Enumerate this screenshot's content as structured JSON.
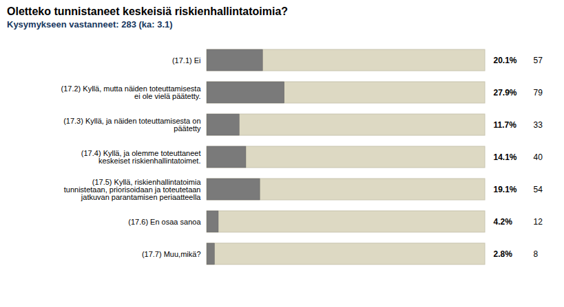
{
  "chart_data": {
    "type": "bar",
    "title": "Oletteko tunnistaneet keskeisiä riskienhallintatoimia?",
    "subtitle": "Kysymykseen vastanneet: 283 (ka: 3.1)",
    "orientation": "horizontal",
    "categories": [
      "(17.1) Ei",
      "(17.2) Kyllä, mutta näiden toteuttamisesta\nei ole vielä päätetty.",
      "(17.3) Kyllä, ja näiden toteuttamisesta on\npäätetty",
      "(17.4) Kyllä, ja olemme toteuttaneet\nkeskeiset riskienhallintatoimet.",
      "(17.5) Kyllä, riskienhallintatoimia\ntunnistetaan, priorisoidaan ja toteutetaan\njatkuvan parantamisen periaatteella",
      "(17.6) En osaa sanoa",
      "(17.7) Muu,mikä?"
    ],
    "values": [
      20.1,
      27.9,
      11.7,
      14.1,
      19.1,
      4.2,
      2.8
    ],
    "value_labels": [
      "20.1%",
      "27.9%",
      "11.7%",
      "14.1%",
      "19.1%",
      "4.2%",
      "2.8%"
    ],
    "counts": [
      57,
      79,
      33,
      40,
      54,
      12,
      8
    ],
    "color": "#7a7a7a",
    "xlim": [
      0,
      100
    ],
    "data_labels": true,
    "tick_labels": "y",
    "grid": false
  }
}
